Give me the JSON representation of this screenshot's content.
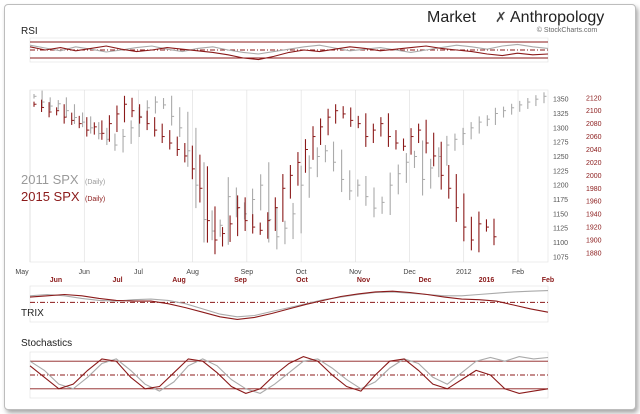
{
  "brand": {
    "title_part1": "Market",
    "title_part2": "Anthropology",
    "source": "© StockCharts.com"
  },
  "colors": {
    "spx2011": "#aaaaaa",
    "spx2015": "#8b1a1a",
    "panel_line": "#8b1a1a",
    "grid": "#d6d6d6"
  },
  "chart_data": [
    {
      "type": "line",
      "title": "RSI",
      "series": [
        {
          "values": [
            62,
            55,
            48,
            58,
            52,
            45,
            50,
            56,
            60,
            52,
            46,
            54,
            58,
            50,
            44,
            40,
            46,
            52,
            58,
            62,
            55,
            48,
            52,
            56,
            50,
            44,
            50,
            56,
            62,
            58,
            52,
            60,
            64,
            58,
            54
          ]
        },
        {
          "values": [
            58,
            50,
            56,
            48,
            54,
            60,
            52,
            46,
            50,
            56,
            52,
            48,
            44,
            38,
            30,
            26,
            34,
            44,
            50,
            46,
            52,
            58,
            54,
            48,
            52,
            56,
            60,
            54,
            50,
            46,
            40,
            36,
            42,
            38,
            40
          ]
        }
      ],
      "ylim": [
        20,
        80
      ],
      "bands": [
        30,
        50,
        70
      ]
    },
    {
      "type": "bar",
      "legend": [
        "2011 SPX",
        "2015 SPX"
      ],
      "legend_sub": "(Daily)",
      "x_top": [
        "May",
        "Jun",
        "Jul",
        "Aug",
        "Sep",
        "Oct",
        "Nov",
        "Dec",
        "2012",
        "Feb"
      ],
      "x_bottom": [
        "Jun",
        "Jul",
        "Aug",
        "Sep",
        "Oct",
        "Nov",
        "Dec",
        "2016",
        "Feb"
      ],
      "y_left_ticks": [
        1075,
        1100,
        1125,
        1150,
        1175,
        1200,
        1225,
        1250,
        1275,
        1300,
        1325,
        1350
      ],
      "y_right_ticks": [
        1880,
        1900,
        1920,
        1940,
        1960,
        1980,
        2000,
        2020,
        2040,
        2060,
        2080,
        2100,
        2120
      ],
      "ylim_2011": [
        1066,
        1366
      ],
      "ylim_2015": [
        1866,
        2132
      ],
      "series": [
        {
          "legend_index": 0,
          "values": [
            1355,
            1345,
            1338,
            1342,
            1330,
            1318,
            1310,
            1300,
            1290,
            1280,
            1270,
            1285,
            1300,
            1320,
            1335,
            1345,
            1340,
            1320,
            1300,
            1260,
            1200,
            1140,
            1120,
            1130,
            1180,
            1160,
            1150,
            1175,
            1200,
            1140,
            1110,
            1125,
            1150,
            1200,
            1230,
            1250,
            1260,
            1240,
            1210,
            1190,
            1200,
            1180,
            1160,
            1170,
            1200,
            1220,
            1240,
            1250,
            1210,
            1230,
            1250,
            1270,
            1280,
            1290,
            1300,
            1310,
            1315,
            1325,
            1330,
            1335,
            1340,
            1345,
            1350,
            1355
          ]
        },
        {
          "legend_index": 1,
          "values": [
            2110,
            2105,
            2098,
            2100,
            2090,
            2085,
            2080,
            2070,
            2075,
            2065,
            2080,
            2095,
            2110,
            2100,
            2090,
            2080,
            2070,
            2060,
            2050,
            2040,
            2030,
            2010,
            1980,
            1930,
            1900,
            1910,
            1925,
            1950,
            1930,
            1920,
            1915,
            1930,
            1950,
            1980,
            2000,
            2020,
            2040,
            2060,
            2075,
            2090,
            2100,
            2095,
            2085,
            2080,
            2060,
            2070,
            2080,
            2060,
            2050,
            2045,
            2060,
            2070,
            2050,
            2030,
            2000,
            1980,
            1950,
            1920,
            1900,
            1925,
            1920,
            1905
          ]
        }
      ]
    },
    {
      "type": "line",
      "title": "TRIX",
      "series": [
        {
          "values": [
            0.1,
            0.12,
            0.1,
            0.06,
            0.03,
            0.02,
            0.04,
            0.05,
            0.03,
            -0.02,
            -0.1,
            -0.18,
            -0.22,
            -0.2,
            -0.14,
            -0.08,
            -0.02,
            0.04,
            0.08,
            0.12,
            0.15,
            0.16,
            0.14,
            0.12,
            0.1,
            0.1,
            0.12,
            0.14,
            0.16,
            0.17,
            0.18
          ]
        },
        {
          "values": [
            0.08,
            0.1,
            0.12,
            0.1,
            0.06,
            0.03,
            0.02,
            0.02,
            -0.02,
            -0.08,
            -0.15,
            -0.22,
            -0.26,
            -0.23,
            -0.17,
            -0.1,
            -0.03,
            0.03,
            0.09,
            0.13,
            0.16,
            0.17,
            0.15,
            0.12,
            0.08,
            0.05,
            0.04,
            0.02,
            -0.04,
            -0.1,
            -0.15
          ]
        }
      ],
      "ylim": [
        -0.3,
        0.25
      ],
      "bands": [
        0
      ]
    },
    {
      "type": "line",
      "title": "Stochastics",
      "series": [
        {
          "values": [
            80,
            60,
            30,
            20,
            45,
            75,
            85,
            60,
            30,
            15,
            35,
            70,
            85,
            70,
            40,
            20,
            10,
            30,
            55,
            80,
            85,
            65,
            40,
            20,
            35,
            65,
            85,
            75,
            45,
            30,
            55,
            80,
            88,
            80,
            90,
            85,
            88
          ]
        },
        {
          "values": [
            70,
            45,
            20,
            30,
            60,
            85,
            80,
            45,
            20,
            25,
            55,
            85,
            80,
            55,
            25,
            10,
            20,
            50,
            75,
            90,
            80,
            50,
            25,
            15,
            50,
            80,
            85,
            60,
            30,
            20,
            40,
            60,
            50,
            20,
            10,
            15,
            20
          ]
        }
      ],
      "ylim": [
        0,
        100
      ],
      "bands": [
        20,
        50,
        80
      ]
    }
  ]
}
